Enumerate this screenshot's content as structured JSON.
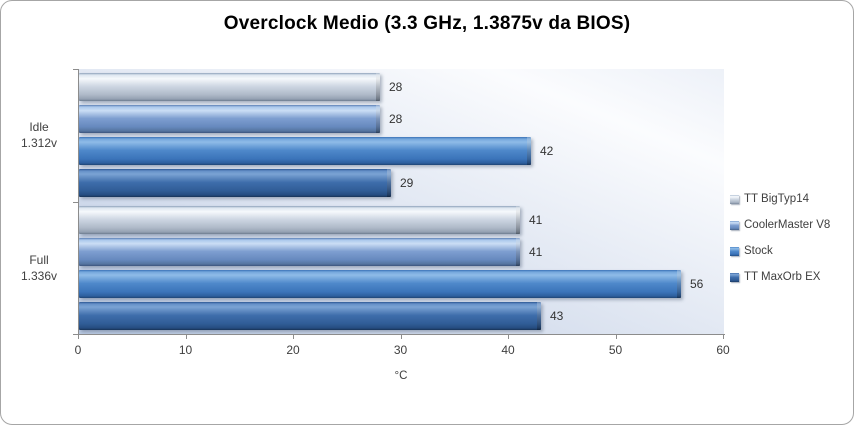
{
  "chart_data": {
    "type": "bar",
    "orientation": "horizontal",
    "title": "Overclock Medio (3.3 GHz, 1.3875v da BIOS)",
    "xlabel": "°C",
    "ylabel": "",
    "xlim": [
      0,
      60
    ],
    "x_ticks": [
      0,
      10,
      20,
      30,
      40,
      50,
      60
    ],
    "gridlines": false,
    "legend_position": "right",
    "categories": [
      [
        "Idle",
        "1.312v"
      ],
      [
        "Full",
        "1.336v"
      ]
    ],
    "series": [
      {
        "name": "TT BigTyp14",
        "color": "#c6cfdc",
        "values": [
          28,
          41
        ]
      },
      {
        "name": "CoolerMaster V8",
        "color": "#7495c8",
        "values": [
          28,
          41
        ]
      },
      {
        "name": "Stock",
        "color": "#417cc0",
        "values": [
          42,
          56
        ]
      },
      {
        "name": "TT MaxOrb EX",
        "color": "#335f9c",
        "values": [
          29,
          43
        ]
      }
    ]
  }
}
